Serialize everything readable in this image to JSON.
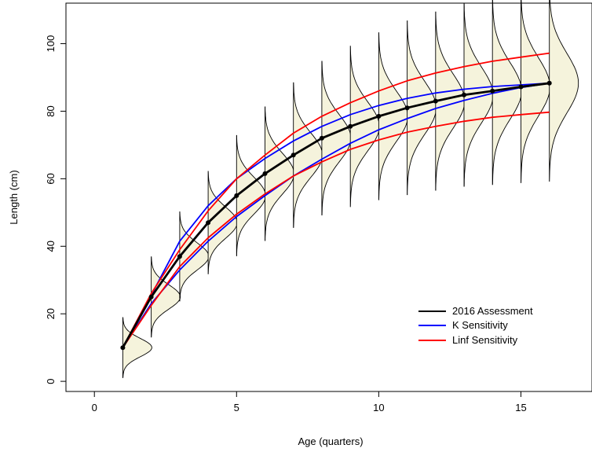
{
  "chart_data": {
    "type": "line",
    "title": "",
    "xlabel": "Age (quarters)",
    "ylabel": "Length (cm)",
    "xlim": [
      -1,
      17.5
    ],
    "ylim": [
      -3,
      112
    ],
    "xticks": [
      0,
      5,
      10,
      15
    ],
    "yticks": [
      0,
      20,
      40,
      60,
      80,
      100
    ],
    "grid": false,
    "legend_position": "bottom-right",
    "distribution_fill": "#f5f3dc",
    "x": [
      1,
      2,
      3,
      4,
      5,
      6,
      7,
      8,
      9,
      10,
      11,
      12,
      13,
      14,
      15,
      16
    ],
    "distribution_sd": [
      2.7,
      3.6,
      4.0,
      4.6,
      5.4,
      6.0,
      6.5,
      6.9,
      7.2,
      7.5,
      7.8,
      8.0,
      8.2,
      8.4,
      8.6,
      8.8
    ],
    "series": [
      {
        "name": "2016 Assessment",
        "color": "#000000",
        "markers": true,
        "values": [
          10.0,
          25.0,
          37.0,
          47.0,
          55.0,
          61.5,
          67.0,
          72.0,
          75.5,
          78.5,
          81.0,
          83.0,
          84.8,
          86.0,
          87.2,
          88.3
        ]
      },
      {
        "name": "K Sensitivity",
        "color": "#0000ff",
        "markers": false,
        "values": [
          10.0,
          25.5,
          41.5,
          52.0,
          60.0,
          66.0,
          71.2,
          75.5,
          79.0,
          81.7,
          83.8,
          85.4,
          86.5,
          87.3,
          87.8,
          88.3
        ]
      },
      {
        "name": "K Sensitivity (lower)",
        "color": "#0000ff",
        "markers": false,
        "values": [
          10.0,
          23.0,
          33.0,
          41.5,
          48.8,
          55.0,
          60.8,
          65.8,
          70.5,
          74.5,
          77.8,
          80.8,
          83.2,
          85.3,
          87.0,
          88.3
        ]
      },
      {
        "name": "Linf Sensitivity",
        "color": "#ff0000",
        "markers": false,
        "values": [
          10.0,
          26.0,
          39.0,
          50.5,
          60.0,
          67.0,
          73.5,
          78.5,
          82.5,
          86.0,
          89.0,
          91.3,
          93.2,
          94.8,
          96.0,
          97.2
        ]
      },
      {
        "name": "Linf Sensitivity (lower)",
        "color": "#ff0000",
        "markers": false,
        "values": [
          10.0,
          22.5,
          34.0,
          42.5,
          49.5,
          55.5,
          60.8,
          65.0,
          68.7,
          71.5,
          73.8,
          75.5,
          77.0,
          78.2,
          79.0,
          79.7
        ]
      }
    ],
    "legend": [
      {
        "label": "2016 Assessment",
        "color": "#000000"
      },
      {
        "label": "K Sensitivity",
        "color": "#0000ff"
      },
      {
        "label": "Linf Sensitivity",
        "color": "#ff0000"
      }
    ]
  }
}
